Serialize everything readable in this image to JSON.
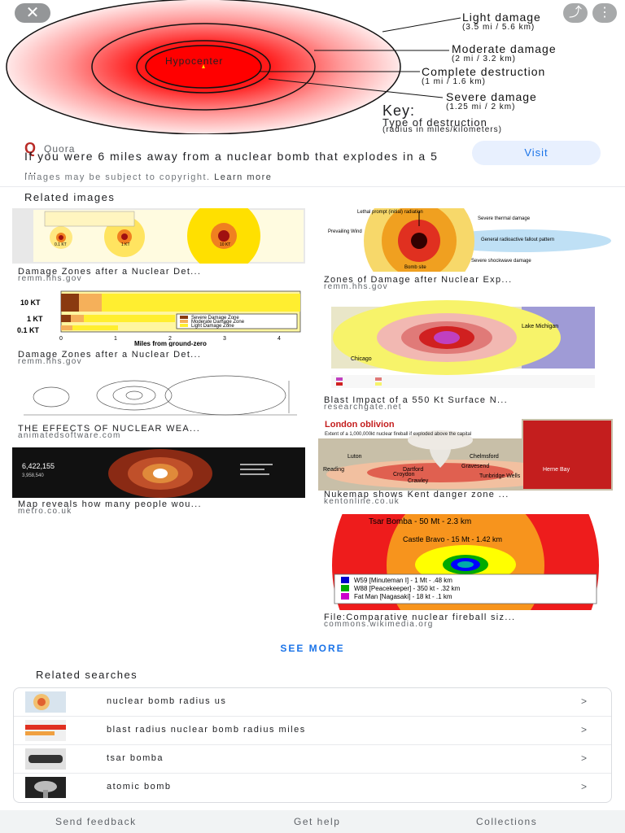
{
  "hero": {
    "close_glyph": "✕",
    "actions": [
      "⤴",
      "⋮"
    ],
    "hypocenter": "Hypocenter",
    "callouts": [
      {
        "title": "Light damage",
        "sub": "(3.5 mi / 5.6 km)"
      },
      {
        "title": "Moderate damage",
        "sub": "(2 mi / 3.2 km)"
      },
      {
        "title": "Complete destruction",
        "sub": "(1 mi / 1.6 km)"
      },
      {
        "title": "Severe damage",
        "sub": "(1.25 mi / 2 km)"
      }
    ],
    "key_title": "Key:",
    "key_sub": "Type of destruction",
    "key_sub2": "(radius in miles/kilometers)"
  },
  "source": {
    "logo": "Q",
    "name": "Quora",
    "title": "If you were 6 miles away from a nuclear bomb that explodes in a 5 ...",
    "copyright": "Images may be subject to copyright.",
    "learn_more": "Learn more",
    "visit": "Visit"
  },
  "related_images": {
    "title": "Related images",
    "items": [
      {
        "caption": "Damage Zones after a Nuclear Det...",
        "domain": "remm.hhs.gov"
      },
      {
        "caption": "Zones of Damage after Nuclear Exp...",
        "domain": "remm.hhs.gov"
      },
      {
        "caption": "Damage Zones after a Nuclear Det...",
        "domain": "remm.hhs.gov"
      },
      {
        "caption": "Blast Impact of a 550 Kt Surface N...",
        "domain": "researchgate.net"
      },
      {
        "caption": "THE EFFECTS OF NUCLEAR WEA...",
        "domain": "animatedsoftware.com"
      },
      {
        "caption": "Nukemap shows Kent danger zone ...",
        "domain": "kentonline.co.uk"
      },
      {
        "caption": "Map reveals how many people wou...",
        "domain": "metro.co.uk"
      },
      {
        "caption": "File:Comparative nuclear fireball siz...",
        "domain": "commons.wikimedia.org"
      }
    ],
    "img_text": {
      "kt_labels": [
        "10 KT",
        "1 KT",
        "0.1 KT"
      ],
      "x_label": "Miles from ground-zero",
      "legend": [
        "Severe Damage Zone",
        "Moderate Damage Zone",
        "Light Damage Zone"
      ],
      "ticks": [
        "0",
        "1",
        "2",
        "3",
        "4"
      ],
      "small_kt": [
        "0.1 KT",
        "1 KT",
        "10 KT"
      ],
      "zones_labels": [
        "Lethal prompt (initial) radiation",
        "Severe thermal damage",
        "Prevailing Wind",
        "General radioactive fallout pattern",
        "Bomb site",
        "Severe shockwave damage"
      ],
      "lake": "Lake Michigan",
      "chicago": "Chicago",
      "london_title": "London oblivion",
      "london_sub": "Extent of a 1,000,000kt nuclear fireball if exploded above the capital",
      "london_places": [
        "Luton",
        "Chelmsford",
        "Reading",
        "Dartford",
        "Gravesend",
        "Croydon",
        "Crawley",
        "Tunbridge Wells",
        "Herne Bay"
      ],
      "map_count": "6,422,155",
      "map_count2": "3,958,540",
      "tsar_outer": "Tsar Bomba - 50 Mt - 2.3 km",
      "tsar_inner": "Castle Bravo - 15 Mt - 1.42 km",
      "tsar_legend": [
        "W59 [Minuteman I] - 1 Mt - .48 km",
        "W88 [Peacekeeper] - 350 kt - .32 km",
        "Fat Man [Nagasaki] - 18 kt - .1 km"
      ]
    }
  },
  "see_more": "SEE MORE",
  "related_searches": {
    "title": "Related searches",
    "items": [
      {
        "label": "nuclear bomb radius us"
      },
      {
        "label": "blast radius nuclear bomb radius miles"
      },
      {
        "label": "tsar bomba"
      },
      {
        "label": "atomic bomb"
      }
    ],
    "chevron": ">"
  },
  "footer": {
    "send_feedback": "Send feedback",
    "get_help": "Get help",
    "collections": "Collections"
  }
}
